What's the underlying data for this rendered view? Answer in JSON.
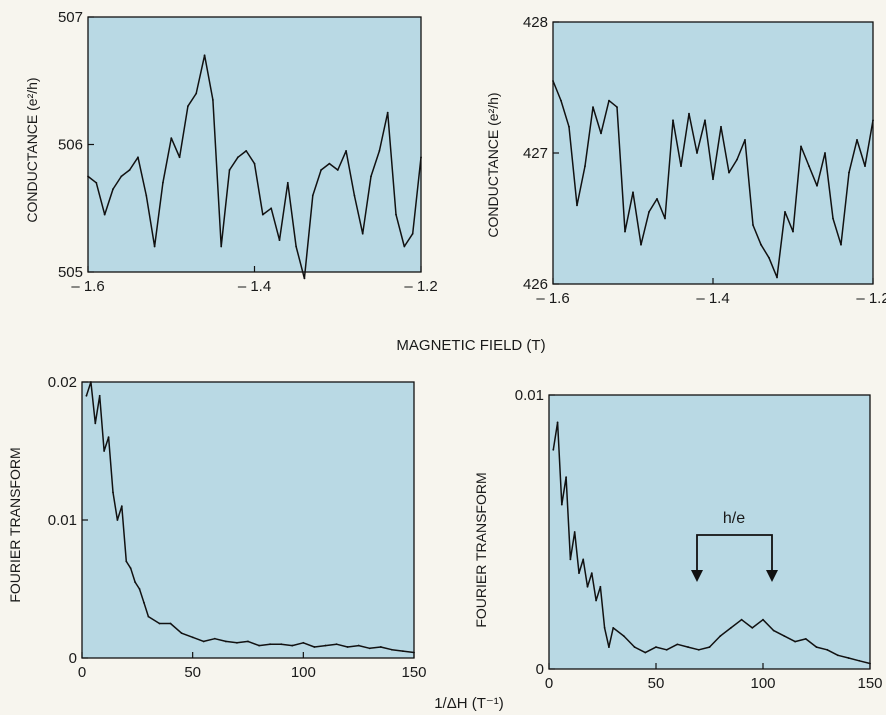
{
  "colors": {
    "plot_bg": "#b9d9e4",
    "trace": "#111111",
    "paper": "#f7f5ee"
  },
  "labels": {
    "top_left_ylabel": "CONDUCTANCE (e²/h)",
    "top_right_ylabel": "CONDUCTANCE (e²/h)",
    "bottom_left_ylabel": "FOURIER TRANSFORM",
    "bottom_right_ylabel": "FOURIER TRANSFORM",
    "shared_xlabel_top": "MAGNETIC FIELD (T)",
    "shared_xlabel_bottom": "1/ΔH (T⁻¹)",
    "annotation": "h/e"
  },
  "chart_data": [
    {
      "type": "line",
      "ylabel": "CONDUCTANCE (e²/h)",
      "xlim": [
        -1.6,
        -1.2
      ],
      "ylim": [
        505,
        507
      ],
      "xticks": [
        "– 1.6",
        "– 1.4",
        "– 1.2"
      ],
      "yticks": [
        "505",
        "506",
        "507"
      ],
      "x": [
        -1.6,
        -1.59,
        -1.58,
        -1.57,
        -1.56,
        -1.55,
        -1.54,
        -1.53,
        -1.52,
        -1.51,
        -1.5,
        -1.49,
        -1.48,
        -1.47,
        -1.46,
        -1.45,
        -1.44,
        -1.43,
        -1.42,
        -1.41,
        -1.4,
        -1.39,
        -1.38,
        -1.37,
        -1.36,
        -1.35,
        -1.34,
        -1.33,
        -1.32,
        -1.31,
        -1.3,
        -1.29,
        -1.28,
        -1.27,
        -1.26,
        -1.25,
        -1.24,
        -1.23,
        -1.22,
        -1.21,
        -1.2
      ],
      "y": [
        505.75,
        505.7,
        505.45,
        505.65,
        505.75,
        505.8,
        505.9,
        505.6,
        505.2,
        505.7,
        506.05,
        505.9,
        506.3,
        506.4,
        506.7,
        506.35,
        505.2,
        505.8,
        505.9,
        505.95,
        505.85,
        505.45,
        505.5,
        505.25,
        505.7,
        505.2,
        504.95,
        505.6,
        505.8,
        505.85,
        505.8,
        505.95,
        505.6,
        505.3,
        505.75,
        505.95,
        506.25,
        505.45,
        505.2,
        505.3,
        505.9
      ]
    },
    {
      "type": "line",
      "ylabel": "CONDUCTANCE (e²/h)",
      "xlim": [
        -1.6,
        -1.2
      ],
      "ylim": [
        426,
        428
      ],
      "xticks": [
        "– 1.6",
        "– 1.4",
        "– 1.2"
      ],
      "yticks": [
        "426",
        "427",
        "428"
      ],
      "x": [
        -1.6,
        -1.59,
        -1.58,
        -1.57,
        -1.56,
        -1.55,
        -1.54,
        -1.53,
        -1.52,
        -1.51,
        -1.5,
        -1.49,
        -1.48,
        -1.47,
        -1.46,
        -1.45,
        -1.44,
        -1.43,
        -1.42,
        -1.41,
        -1.4,
        -1.39,
        -1.38,
        -1.37,
        -1.36,
        -1.35,
        -1.34,
        -1.33,
        -1.32,
        -1.31,
        -1.3,
        -1.29,
        -1.28,
        -1.27,
        -1.26,
        -1.25,
        -1.24,
        -1.23,
        -1.22,
        -1.21,
        -1.2
      ],
      "y": [
        427.55,
        427.4,
        427.2,
        426.6,
        426.9,
        427.35,
        427.15,
        427.4,
        427.35,
        426.4,
        426.7,
        426.3,
        426.55,
        426.65,
        426.5,
        427.25,
        426.9,
        427.3,
        427.0,
        427.25,
        426.8,
        427.2,
        426.85,
        426.95,
        427.1,
        426.45,
        426.3,
        426.2,
        426.05,
        426.55,
        426.4,
        427.05,
        426.9,
        426.75,
        427.0,
        426.5,
        426.3,
        426.85,
        427.1,
        426.9,
        427.25
      ]
    },
    {
      "type": "line",
      "ylabel": "FOURIER TRANSFORM",
      "xlim": [
        0,
        150
      ],
      "ylim": [
        0,
        0.02
      ],
      "xticks": [
        "0",
        "50",
        "100",
        "150"
      ],
      "yticks": [
        "0",
        "0.01",
        "0.02"
      ],
      "x": [
        2,
        4,
        6,
        8,
        10,
        12,
        14,
        16,
        18,
        20,
        22,
        24,
        26,
        28,
        30,
        35,
        40,
        45,
        50,
        55,
        60,
        65,
        70,
        75,
        80,
        85,
        90,
        95,
        100,
        105,
        110,
        115,
        120,
        125,
        130,
        135,
        140,
        145,
        150
      ],
      "y": [
        0.019,
        0.02,
        0.017,
        0.019,
        0.015,
        0.016,
        0.012,
        0.01,
        0.011,
        0.007,
        0.0065,
        0.0055,
        0.005,
        0.004,
        0.003,
        0.0025,
        0.0025,
        0.0018,
        0.0015,
        0.0012,
        0.0014,
        0.0012,
        0.0011,
        0.0012,
        0.0009,
        0.001,
        0.001,
        0.0009,
        0.0011,
        0.0008,
        0.0009,
        0.001,
        0.0008,
        0.0009,
        0.0007,
        0.0008,
        0.0006,
        0.0005,
        0.0004
      ]
    },
    {
      "type": "line",
      "ylabel": "FOURIER TRANSFORM",
      "xlim": [
        0,
        150
      ],
      "ylim": [
        0,
        0.01
      ],
      "xticks": [
        "0",
        "50",
        "100",
        "150"
      ],
      "yticks": [
        "0",
        "0.01"
      ],
      "x": [
        2,
        4,
        6,
        8,
        10,
        12,
        14,
        16,
        18,
        20,
        22,
        24,
        26,
        28,
        30,
        35,
        40,
        45,
        50,
        55,
        60,
        65,
        70,
        75,
        80,
        85,
        90,
        95,
        100,
        105,
        110,
        115,
        120,
        125,
        130,
        135,
        140,
        145,
        150
      ],
      "y": [
        0.008,
        0.009,
        0.006,
        0.007,
        0.004,
        0.005,
        0.0035,
        0.004,
        0.003,
        0.0035,
        0.0025,
        0.003,
        0.0015,
        0.0008,
        0.0015,
        0.0012,
        0.0008,
        0.0006,
        0.0008,
        0.0007,
        0.0009,
        0.0008,
        0.0007,
        0.0008,
        0.0012,
        0.0015,
        0.0018,
        0.0015,
        0.0018,
        0.0014,
        0.0012,
        0.001,
        0.0011,
        0.0008,
        0.0007,
        0.0005,
        0.0004,
        0.0003,
        0.0002
      ]
    }
  ]
}
